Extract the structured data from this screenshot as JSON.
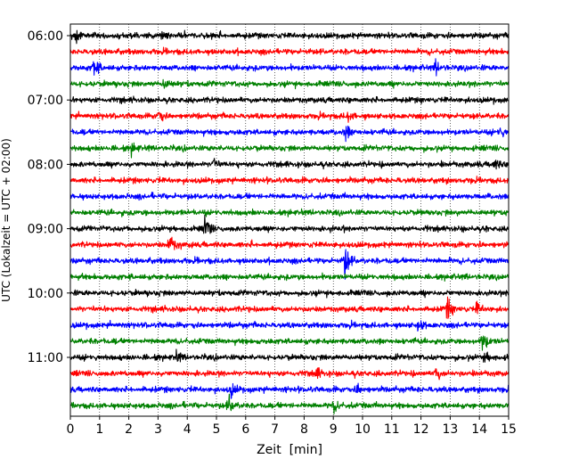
{
  "chart_data": {
    "type": "line",
    "xlabel": "Zeit  [min]",
    "ylabel": "UTC (Lokalzeit = UTC + 02:00)",
    "xlim": [
      0,
      15
    ],
    "x_ticks": [
      "0",
      "1",
      "2",
      "3",
      "4",
      "5",
      "6",
      "7",
      "8",
      "9",
      "10",
      "11",
      "12",
      "13",
      "14",
      "15"
    ],
    "y_tick_labels": [
      "06:00",
      "07:00",
      "08:00",
      "09:00",
      "10:00",
      "11:00"
    ],
    "row_interval_min": 15,
    "row_start": "06:00",
    "row_count": 24,
    "colors": [
      "#000000",
      "#ff0000",
      "#0000ff",
      "#008000"
    ],
    "grid": "vertical dotted lines at each minute",
    "legend": "none",
    "events": [
      {
        "row": 0,
        "x": 0.2,
        "amp": 0.6
      },
      {
        "row": 0,
        "x": 3.1,
        "amp": 0.45
      },
      {
        "row": 2,
        "x": 0.8,
        "amp": 0.8
      },
      {
        "row": 2,
        "x": 12.5,
        "amp": 0.5
      },
      {
        "row": 3,
        "x": 3.2,
        "amp": 0.5
      },
      {
        "row": 5,
        "x": 3.0,
        "amp": 0.5
      },
      {
        "row": 5,
        "x": 9.5,
        "amp": 0.4
      },
      {
        "row": 6,
        "x": 9.4,
        "amp": 0.7
      },
      {
        "row": 6,
        "x": 14.7,
        "amp": 0.4
      },
      {
        "row": 7,
        "x": 2.1,
        "amp": 0.45
      },
      {
        "row": 8,
        "x": 4.9,
        "amp": 0.5
      },
      {
        "row": 8,
        "x": 14.5,
        "amp": 0.5
      },
      {
        "row": 12,
        "x": 4.6,
        "amp": 0.9
      },
      {
        "row": 13,
        "x": 3.4,
        "amp": 1.0
      },
      {
        "row": 14,
        "x": 9.4,
        "amp": 1.4
      },
      {
        "row": 17,
        "x": 12.9,
        "amp": 0.9
      },
      {
        "row": 17,
        "x": 13.9,
        "amp": 0.5
      },
      {
        "row": 18,
        "x": 11.9,
        "amp": 0.5
      },
      {
        "row": 19,
        "x": 14.1,
        "amp": 0.9
      },
      {
        "row": 20,
        "x": 3.6,
        "amp": 0.45
      },
      {
        "row": 20,
        "x": 14.2,
        "amp": 0.6
      },
      {
        "row": 21,
        "x": 8.4,
        "amp": 0.5
      },
      {
        "row": 21,
        "x": 12.5,
        "amp": 0.5
      },
      {
        "row": 22,
        "x": 5.5,
        "amp": 0.5
      },
      {
        "row": 22,
        "x": 9.8,
        "amp": 0.4
      },
      {
        "row": 23,
        "x": 5.4,
        "amp": 0.9
      },
      {
        "row": 23,
        "x": 9.0,
        "amp": 0.5
      }
    ]
  }
}
